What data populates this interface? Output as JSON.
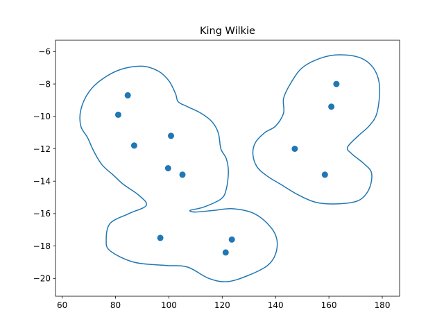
{
  "chart_data": {
    "type": "scatter",
    "title": "King Wilkie",
    "xlabel": "",
    "ylabel": "",
    "xlim": [
      57.5,
      186.5
    ],
    "ylim": [
      -21.1,
      -5.3
    ],
    "x_ticks": [
      60,
      80,
      100,
      120,
      140,
      160,
      180
    ],
    "y_ticks": [
      -6,
      -8,
      -10,
      -12,
      -14,
      -16,
      -18,
      -20
    ],
    "x_tick_labels": [
      "60",
      "80",
      "100",
      "120",
      "140",
      "160",
      "180"
    ],
    "y_tick_labels": [
      "−6",
      "−8",
      "−10",
      "−12",
      "−14",
      "−16",
      "−18",
      "−20"
    ],
    "grid": false,
    "color": "#1f77b4",
    "points": [
      {
        "x": 84.6,
        "y": -8.7
      },
      {
        "x": 81.0,
        "y": -9.9
      },
      {
        "x": 87.0,
        "y": -11.8
      },
      {
        "x": 100.8,
        "y": -11.2
      },
      {
        "x": 99.7,
        "y": -13.2
      },
      {
        "x": 105.1,
        "y": -13.6
      },
      {
        "x": 96.8,
        "y": -17.5
      },
      {
        "x": 123.6,
        "y": -17.6
      },
      {
        "x": 121.3,
        "y": -18.4
      },
      {
        "x": 162.8,
        "y": -8.0
      },
      {
        "x": 160.9,
        "y": -9.4
      },
      {
        "x": 147.2,
        "y": -12.0
      },
      {
        "x": 158.5,
        "y": -13.6
      }
    ],
    "outlines": [
      {
        "name": "",
        "points": [
          [
            90,
            -6.9
          ],
          [
            96,
            -7.2
          ],
          [
            100,
            -7.8
          ],
          [
            102.5,
            -8.6
          ],
          [
            103.5,
            -9.1
          ],
          [
            107,
            -9.4
          ],
          [
            112,
            -9.8
          ],
          [
            116,
            -10.3
          ],
          [
            118.5,
            -11.0
          ],
          [
            119.5,
            -12.0
          ],
          [
            121.5,
            -12.6
          ],
          [
            122.3,
            -13.4
          ],
          [
            121.5,
            -14.5
          ],
          [
            119.5,
            -15.1
          ],
          [
            113,
            -15.6
          ],
          [
            108,
            -15.8
          ],
          [
            110,
            -15.9
          ],
          [
            117,
            -15.8
          ],
          [
            124,
            -15.7
          ],
          [
            132,
            -16.0
          ],
          [
            138,
            -16.8
          ],
          [
            140.5,
            -17.6
          ],
          [
            140,
            -18.5
          ],
          [
            137,
            -19.2
          ],
          [
            130,
            -19.8
          ],
          [
            122,
            -20.2
          ],
          [
            115,
            -20.0
          ],
          [
            107,
            -19.3
          ],
          [
            99,
            -19.2
          ],
          [
            87,
            -19.0
          ],
          [
            78,
            -18.3
          ],
          [
            76.5,
            -17.6
          ],
          [
            78,
            -16.6
          ],
          [
            85,
            -16.0
          ],
          [
            91.5,
            -15.5
          ],
          [
            89,
            -14.9
          ],
          [
            83,
            -14.2
          ],
          [
            79,
            -13.6
          ],
          [
            75,
            -13.0
          ],
          [
            72,
            -12.2
          ],
          [
            69.5,
            -11.3
          ],
          [
            67,
            -10.6
          ],
          [
            67,
            -9.6
          ],
          [
            70,
            -8.5
          ],
          [
            75,
            -7.7
          ],
          [
            82,
            -7.1
          ],
          [
            90,
            -6.9
          ]
        ]
      },
      {
        "name": "",
        "points": [
          [
            164,
            -6.2
          ],
          [
            172,
            -6.4
          ],
          [
            177,
            -7.1
          ],
          [
            179,
            -8.2
          ],
          [
            178,
            -9.8
          ],
          [
            175,
            -10.6
          ],
          [
            171,
            -11.2
          ],
          [
            167,
            -11.9
          ],
          [
            168.5,
            -12.3
          ],
          [
            173,
            -12.9
          ],
          [
            176,
            -13.5
          ],
          [
            175,
            -14.5
          ],
          [
            171,
            -15.2
          ],
          [
            163,
            -15.4
          ],
          [
            155,
            -15.3
          ],
          [
            148,
            -14.8
          ],
          [
            142,
            -14.2
          ],
          [
            137,
            -13.7
          ],
          [
            133,
            -13.1
          ],
          [
            131.5,
            -12.3
          ],
          [
            132.5,
            -11.6
          ],
          [
            136,
            -11.0
          ],
          [
            140,
            -10.6
          ],
          [
            143,
            -9.8
          ],
          [
            143,
            -8.9
          ],
          [
            145.5,
            -8.0
          ],
          [
            150,
            -7.0
          ],
          [
            157,
            -6.4
          ],
          [
            164,
            -6.2
          ]
        ]
      }
    ]
  }
}
